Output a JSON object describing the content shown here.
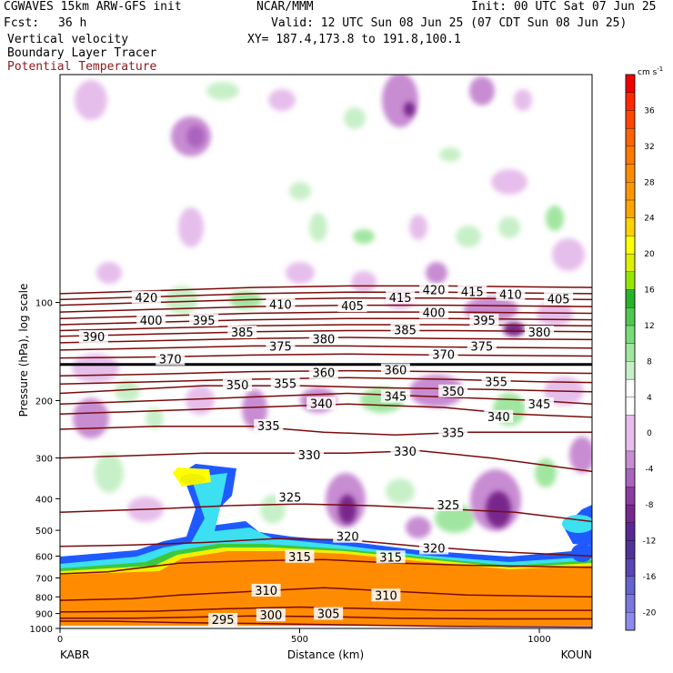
{
  "header": {
    "model": "CGWAVES 15km ARW-GFS init",
    "center": "NCAR/MMM",
    "init": "Init: 00 UTC Sat 07 Jun 25",
    "fcst_label": "Fcst:",
    "fcst_value": "36 h",
    "valid": "Valid: 12 UTC Sun 08 Jun 25 (07 CDT Sun 08 Jun 25)",
    "xy": "XY= 187.4,173.8 to 191.8,100.1",
    "field1": "Vertical velocity",
    "field2": "Boundary Layer Tracer",
    "field3": "Potential Temperature",
    "field3_color": "#8b1a1a"
  },
  "chart_data": {
    "type": "heatmap",
    "title": "",
    "xlabel": "Distance (km)",
    "ylabel": "Pressure (hPa), log scale",
    "xlim": [
      0,
      1110
    ],
    "ylim": [
      1000,
      20
    ],
    "y_scale": "log",
    "x_ticks": [
      {
        "value": 0,
        "label": "0"
      },
      {
        "value": 500,
        "label": "500"
      },
      {
        "value": 1000,
        "label": "1000"
      }
    ],
    "y_ticks": [
      {
        "value": 100,
        "label": "100"
      },
      {
        "value": 200,
        "label": "200"
      },
      {
        "value": 300,
        "label": "300"
      },
      {
        "value": 400,
        "label": "400"
      },
      {
        "value": 500,
        "label": "500"
      },
      {
        "value": 600,
        "label": "600"
      },
      {
        "value": 700,
        "label": "700"
      },
      {
        "value": 800,
        "label": "800"
      },
      {
        "value": 900,
        "label": "900"
      },
      {
        "value": 1000,
        "label": "1000"
      }
    ],
    "endpoints": {
      "left": "KABR",
      "right": "KOUN"
    },
    "colorbar": {
      "units": "cm s",
      "units_exp": "-1",
      "levels": [
        -22,
        -20,
        -18,
        -16,
        -14,
        -12,
        -10,
        -8,
        -6,
        -4,
        -2,
        2,
        4,
        6,
        8,
        10,
        12,
        14,
        16,
        18,
        20,
        22,
        24,
        26,
        28,
        30,
        32,
        34,
        36,
        38,
        40
      ],
      "colors": [
        "#8c8cf0",
        "#7878e0",
        "#6464d0",
        "#5a46b4",
        "#50329a",
        "#5a2896",
        "#78288c",
        "#8c3ca0",
        "#aa64be",
        "#c88cd2",
        "#e6beeb",
        "#ffffff",
        "#ffffff",
        "#c8f0c8",
        "#a0e6a0",
        "#78dc78",
        "#50c850",
        "#28b428",
        "#96e600",
        "#dcf000",
        "#ffff00",
        "#ffd200",
        "#ffa500",
        "#ff9600",
        "#ff8c00",
        "#ff7800",
        "#ff6400",
        "#ff4600",
        "#ff2800",
        "#f00000"
      ],
      "tick_labels": [
        {
          "value": -20,
          "label": "-20"
        },
        {
          "value": -16,
          "label": "-16"
        },
        {
          "value": -12,
          "label": "-12"
        },
        {
          "value": -8,
          "label": "-8"
        },
        {
          "value": -4,
          "label": "-4"
        },
        {
          "value": 0,
          "label": "0"
        },
        {
          "value": 4,
          "label": "4"
        },
        {
          "value": 8,
          "label": "8"
        },
        {
          "value": 12,
          "label": "12"
        },
        {
          "value": 16,
          "label": "16"
        },
        {
          "value": 20,
          "label": "20"
        },
        {
          "value": 24,
          "label": "24"
        },
        {
          "value": 28,
          "label": "28"
        },
        {
          "value": 32,
          "label": "32"
        },
        {
          "value": 36,
          "label": "36"
        }
      ]
    },
    "theta_contours": [
      {
        "label": "295",
        "pts": [
          [
            0,
            950
          ],
          [
            100,
            950
          ],
          [
            250,
            960
          ],
          [
            400,
            965
          ],
          [
            600,
            975
          ],
          [
            800,
            985
          ],
          [
            1110,
            990
          ]
        ],
        "lab": [
          [
            340,
            944
          ]
        ]
      },
      {
        "label": "300",
        "pts": [
          [
            0,
            930
          ],
          [
            150,
            930
          ],
          [
            250,
            925
          ],
          [
            400,
            915
          ],
          [
            550,
            920
          ],
          [
            700,
            930
          ],
          [
            900,
            935
          ],
          [
            1110,
            935
          ]
        ],
        "lab": [
          [
            440,
            915
          ]
        ]
      },
      {
        "label": "305",
        "pts": [
          [
            0,
            890
          ],
          [
            200,
            885
          ],
          [
            350,
            870
          ],
          [
            500,
            860
          ],
          [
            650,
            870
          ],
          [
            800,
            880
          ],
          [
            1110,
            880
          ]
        ],
        "lab": [
          [
            560,
            905
          ]
        ]
      },
      {
        "label": "310",
        "pts": [
          [
            0,
            820
          ],
          [
            150,
            810
          ],
          [
            250,
            790
          ],
          [
            400,
            770
          ],
          [
            550,
            750
          ],
          [
            700,
            770
          ],
          [
            850,
            790
          ],
          [
            1110,
            800
          ]
        ],
        "lab": [
          [
            430,
            768
          ],
          [
            680,
            795
          ]
        ]
      },
      {
        "label": "315",
        "pts": [
          [
            0,
            680
          ],
          [
            100,
            670
          ],
          [
            250,
            630
          ],
          [
            400,
            620
          ],
          [
            550,
            615
          ],
          [
            700,
            630
          ],
          [
            850,
            640
          ],
          [
            1110,
            650
          ]
        ],
        "lab": [
          [
            500,
            605
          ],
          [
            690,
            607
          ]
        ]
      },
      {
        "label": "320",
        "pts": [
          [
            0,
            560
          ],
          [
            150,
            555
          ],
          [
            300,
            545
          ],
          [
            450,
            530
          ],
          [
            600,
            535
          ],
          [
            750,
            560
          ],
          [
            900,
            580
          ],
          [
            1110,
            600
          ]
        ],
        "lab": [
          [
            600,
            525
          ],
          [
            780,
            570
          ]
        ]
      },
      {
        "label": "325",
        "pts": [
          [
            0,
            440
          ],
          [
            200,
            430
          ],
          [
            350,
            420
          ],
          [
            500,
            415
          ],
          [
            650,
            420
          ],
          [
            800,
            430
          ],
          [
            950,
            440
          ],
          [
            1110,
            470
          ]
        ],
        "lab": [
          [
            480,
            398
          ],
          [
            810,
            420
          ]
        ]
      },
      {
        "label": "330",
        "pts": [
          [
            0,
            300
          ],
          [
            150,
            295
          ],
          [
            300,
            290
          ],
          [
            450,
            290
          ],
          [
            600,
            290
          ],
          [
            750,
            285
          ],
          [
            900,
            300
          ],
          [
            1110,
            330
          ]
        ],
        "lab": [
          [
            520,
            295
          ],
          [
            720,
            288
          ]
        ]
      },
      {
        "label": "335",
        "pts": [
          [
            0,
            245
          ],
          [
            200,
            240
          ],
          [
            400,
            240
          ],
          [
            550,
            250
          ],
          [
            700,
            255
          ],
          [
            850,
            250
          ],
          [
            1110,
            250
          ]
        ],
        "lab": [
          [
            435,
            240
          ],
          [
            820,
            252
          ]
        ]
      },
      {
        "label": "340",
        "pts": [
          [
            0,
            220
          ],
          [
            200,
            215
          ],
          [
            400,
            210
          ],
          [
            600,
            205
          ],
          [
            800,
            210
          ],
          [
            950,
            220
          ],
          [
            1110,
            225
          ]
        ],
        "lab": [
          [
            545,
            205
          ],
          [
            915,
            225
          ]
        ]
      },
      {
        "label": "345",
        "pts": [
          [
            0,
            205
          ],
          [
            200,
            200
          ],
          [
            400,
            195
          ],
          [
            600,
            190
          ],
          [
            800,
            195
          ],
          [
            1000,
            200
          ],
          [
            1110,
            205
          ]
        ],
        "lab": [
          [
            700,
            195
          ],
          [
            1000,
            206
          ]
        ]
      },
      {
        "label": "350",
        "pts": [
          [
            0,
            190
          ],
          [
            150,
            185
          ],
          [
            300,
            180
          ],
          [
            500,
            180
          ],
          [
            700,
            183
          ],
          [
            900,
            185
          ],
          [
            1110,
            188
          ]
        ],
        "lab": [
          [
            370,
            180
          ],
          [
            820,
            188
          ]
        ]
      },
      {
        "label": "355",
        "pts": [
          [
            0,
            178
          ],
          [
            200,
            175
          ],
          [
            400,
            172
          ],
          [
            600,
            170
          ],
          [
            800,
            172
          ],
          [
            1000,
            175
          ],
          [
            1110,
            176
          ]
        ],
        "lab": [
          [
            470,
            178
          ],
          [
            910,
            176
          ]
        ]
      },
      {
        "label": "360",
        "pts": [
          [
            0,
            168
          ],
          [
            200,
            166
          ],
          [
            400,
            163
          ],
          [
            600,
            162
          ],
          [
            800,
            163
          ],
          [
            1110,
            165
          ]
        ],
        "lab": [
          [
            550,
            165
          ],
          [
            700,
            162
          ]
        ]
      },
      {
        "label": "370",
        "pts": [
          [
            0,
            148
          ],
          [
            200,
            147
          ],
          [
            400,
            145
          ],
          [
            600,
            144
          ],
          [
            800,
            145
          ],
          [
            1110,
            146
          ]
        ],
        "lab": [
          [
            230,
            150
          ],
          [
            800,
            145
          ]
        ]
      },
      {
        "label": "375",
        "pts": [
          [
            0,
            140
          ],
          [
            200,
            138
          ],
          [
            400,
            136
          ],
          [
            600,
            136
          ],
          [
            800,
            137
          ],
          [
            1110,
            138
          ]
        ],
        "lab": [
          [
            460,
            137
          ],
          [
            880,
            137
          ]
        ]
      },
      {
        "label": "380",
        "pts": [
          [
            0,
            133
          ],
          [
            200,
            131
          ],
          [
            400,
            129
          ],
          [
            600,
            128
          ],
          [
            800,
            129
          ],
          [
            1110,
            130
          ]
        ],
        "lab": [
          [
            550,
            130
          ],
          [
            1000,
            124
          ]
        ]
      },
      {
        "label": "385",
        "pts": [
          [
            0,
            127
          ],
          [
            200,
            125
          ],
          [
            400,
            123
          ],
          [
            600,
            122
          ],
          [
            800,
            122
          ],
          [
            1110,
            123
          ]
        ],
        "lab": [
          [
            380,
            124
          ],
          [
            720,
            122
          ]
        ]
      },
      {
        "label": "390",
        "pts": [
          [
            0,
            122
          ],
          [
            200,
            120
          ],
          [
            400,
            118
          ],
          [
            600,
            117
          ],
          [
            800,
            117
          ],
          [
            1110,
            118
          ]
        ],
        "lab": [
          [
            70,
            128
          ]
        ]
      },
      {
        "label": "395",
        "pts": [
          [
            0,
            117
          ],
          [
            200,
            115
          ],
          [
            400,
            113
          ],
          [
            600,
            112
          ],
          [
            800,
            112
          ],
          [
            1110,
            113
          ]
        ],
        "lab": [
          [
            300,
            114
          ],
          [
            885,
            114
          ]
        ]
      },
      {
        "label": "400",
        "pts": [
          [
            0,
            112
          ],
          [
            200,
            110
          ],
          [
            400,
            108
          ],
          [
            600,
            107
          ],
          [
            800,
            107
          ],
          [
            1110,
            108
          ]
        ],
        "lab": [
          [
            190,
            114
          ],
          [
            780,
            108
          ]
        ]
      },
      {
        "label": "405",
        "pts": [
          [
            0,
            107
          ],
          [
            200,
            105
          ],
          [
            400,
            103
          ],
          [
            600,
            102
          ],
          [
            800,
            102
          ],
          [
            1110,
            103
          ]
        ],
        "lab": [
          [
            610,
            103
          ],
          [
            1040,
            98
          ]
        ]
      },
      {
        "label": "410",
        "pts": [
          [
            0,
            102
          ],
          [
            200,
            100
          ],
          [
            400,
            98
          ],
          [
            600,
            97
          ],
          [
            800,
            97
          ],
          [
            1110,
            98
          ]
        ],
        "lab": [
          [
            460,
            102
          ],
          [
            940,
            95
          ]
        ]
      },
      {
        "label": "415",
        "pts": [
          [
            0,
            98
          ],
          [
            200,
            96
          ],
          [
            400,
            94
          ],
          [
            600,
            93
          ],
          [
            800,
            93
          ],
          [
            1110,
            94
          ]
        ],
        "lab": [
          [
            710,
            97
          ],
          [
            860,
            93
          ]
        ]
      },
      {
        "label": "420",
        "pts": [
          [
            0,
            94
          ],
          [
            200,
            92
          ],
          [
            400,
            90
          ],
          [
            600,
            89
          ],
          [
            800,
            89
          ],
          [
            1110,
            90
          ]
        ],
        "lab": [
          [
            180,
            97
          ],
          [
            780,
            92
          ]
        ]
      }
    ],
    "tropopause": {
      "pressure": 155
    }
  }
}
